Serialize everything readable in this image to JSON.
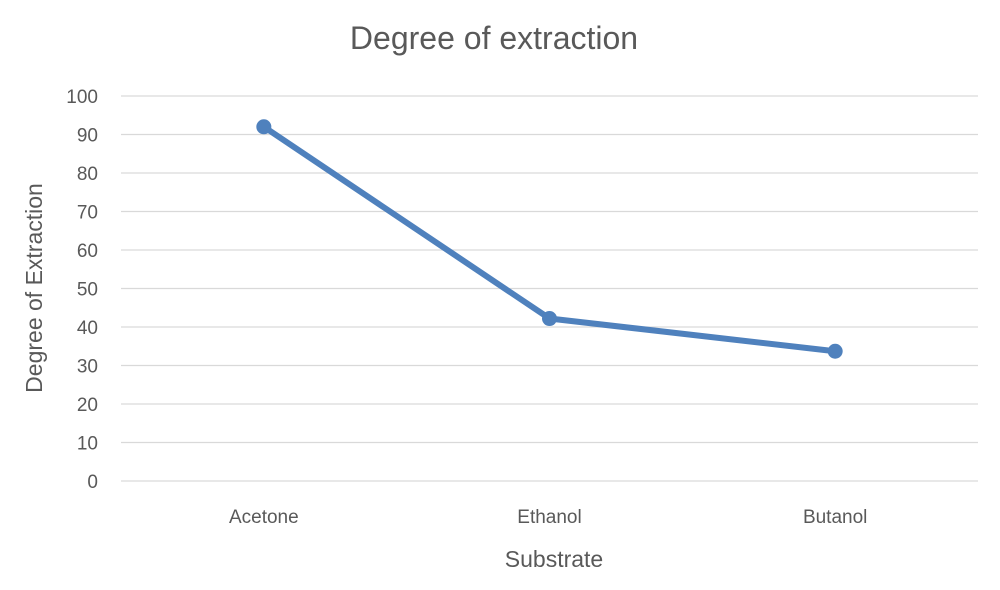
{
  "chart_data": {
    "type": "line",
    "title": "Degree of extraction",
    "xlabel": "Substrate",
    "ylabel": "Degree of Extraction",
    "categories": [
      "Acetone",
      "Ethanol",
      "Butanol"
    ],
    "series": [
      {
        "values": [
          92,
          42.2,
          33.7
        ],
        "color": "#4f81bd"
      }
    ],
    "ylim": [
      0,
      100
    ],
    "yticks": [
      0,
      10,
      20,
      30,
      40,
      50,
      60,
      70,
      80,
      90,
      100
    ],
    "grid": true,
    "legend": "none"
  }
}
